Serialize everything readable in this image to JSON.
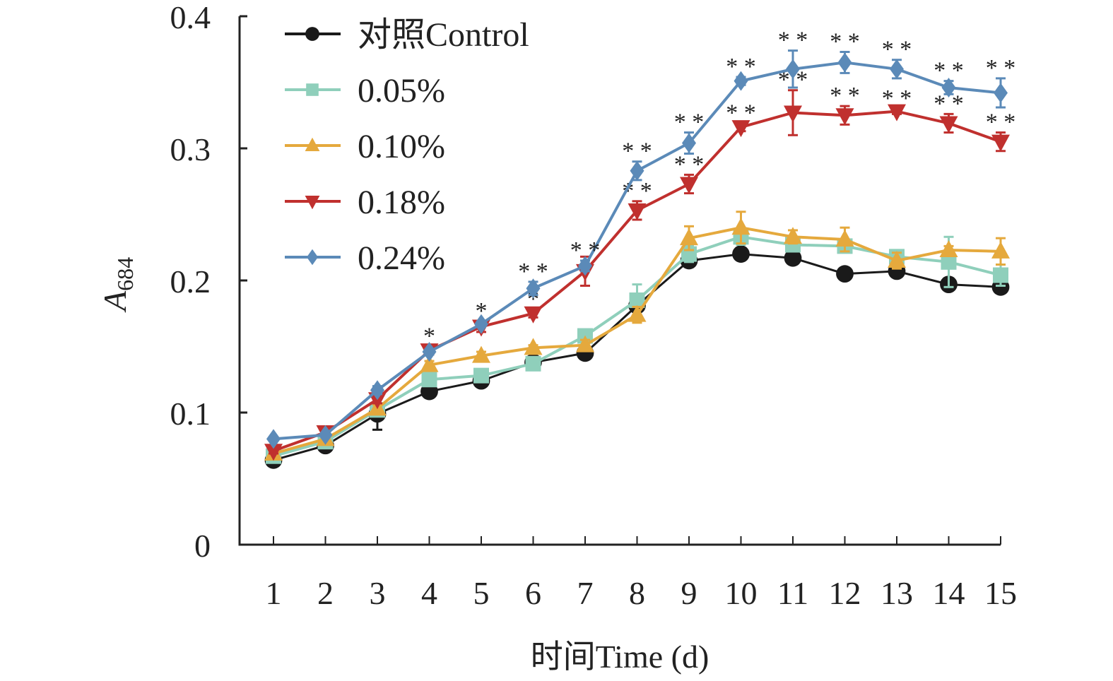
{
  "chart_data": {
    "type": "line",
    "title": "",
    "xlabel": "时间Time (d)",
    "ylabel": "A",
    "ylabel_subscript": "684",
    "ylim": [
      0,
      0.4
    ],
    "yticks": [
      "0",
      "0.1",
      "0.2",
      "0.3",
      "0.4"
    ],
    "ytick_values": [
      0,
      0.1,
      0.2,
      0.3,
      0.4
    ],
    "x": [
      1,
      2,
      3,
      4,
      5,
      6,
      7,
      8,
      9,
      10,
      11,
      12,
      13,
      14,
      15
    ],
    "xticks": [
      "1",
      "2",
      "3",
      "4",
      "5",
      "6",
      "7",
      "8",
      "9",
      "10",
      "11",
      "12",
      "13",
      "14",
      "15"
    ],
    "legend_position": "top-left",
    "grid": false,
    "series": [
      {
        "name": "对照Control",
        "color": "#1a1a1a",
        "marker": "circle",
        "values": [
          0.064,
          0.075,
          0.099,
          0.116,
          0.124,
          0.138,
          0.145,
          0.181,
          0.215,
          0.22,
          0.217,
          0.205,
          0.207,
          0.197,
          0.195
        ],
        "errors": [
          0.002,
          0.002,
          0.012,
          0.002,
          0.004,
          0.002,
          0.003,
          0.004,
          0.004,
          0.003,
          0.002,
          0.003,
          0.002,
          0.004,
          0.004
        ],
        "significance": [
          "",
          "",
          "",
          "",
          "",
          "",
          "",
          "",
          "",
          "",
          "",
          "",
          "",
          "",
          ""
        ]
      },
      {
        "name": "0.05%",
        "color": "#8fcfbb",
        "marker": "square",
        "values": [
          0.067,
          0.078,
          0.102,
          0.125,
          0.128,
          0.137,
          0.158,
          0.185,
          0.22,
          0.233,
          0.227,
          0.226,
          0.218,
          0.214,
          0.204
        ],
        "errors": [
          0.002,
          0.002,
          0.004,
          0.004,
          0.002,
          0.002,
          0.004,
          0.012,
          0.006,
          0.006,
          0.003,
          0.004,
          0.003,
          0.019,
          0.008
        ],
        "significance": [
          "",
          "",
          "",
          "",
          "",
          "",
          "",
          "",
          "",
          "",
          "",
          "",
          "",
          "",
          ""
        ]
      },
      {
        "name": "0.10%",
        "color": "#e5a93d",
        "marker": "triangle-up",
        "values": [
          0.069,
          0.08,
          0.103,
          0.136,
          0.143,
          0.149,
          0.151,
          0.174,
          0.232,
          0.24,
          0.233,
          0.231,
          0.215,
          0.223,
          0.222
        ],
        "errors": [
          0.002,
          0.002,
          0.003,
          0.003,
          0.003,
          0.002,
          0.004,
          0.006,
          0.009,
          0.012,
          0.005,
          0.009,
          0.006,
          0.003,
          0.01
        ],
        "significance": [
          "",
          "",
          "",
          "",
          "",
          "",
          "",
          "",
          "",
          "",
          "",
          "",
          "",
          "",
          ""
        ]
      },
      {
        "name": "0.18%",
        "color": "#c0302e",
        "marker": "triangle-down",
        "values": [
          0.071,
          0.085,
          0.11,
          0.147,
          0.165,
          0.175,
          0.207,
          0.253,
          0.273,
          0.316,
          0.327,
          0.325,
          0.328,
          0.319,
          0.305
        ],
        "errors": [
          0.002,
          0.002,
          0.003,
          0.003,
          0.004,
          0.003,
          0.011,
          0.007,
          0.007,
          0.003,
          0.017,
          0.007,
          0.002,
          0.007,
          0.007
        ],
        "significance": [
          "",
          "",
          "",
          "*",
          "*",
          "*",
          "",
          "**",
          "**",
          "**",
          "**",
          "**",
          "**",
          "**",
          "**"
        ]
      },
      {
        "name": "0.24%",
        "color": "#5b8ab8",
        "marker": "diamond",
        "values": [
          0.08,
          0.083,
          0.117,
          0.146,
          0.167,
          0.194,
          0.211,
          0.283,
          0.304,
          0.351,
          0.36,
          0.365,
          0.36,
          0.346,
          0.342
        ],
        "errors": [
          0.001,
          0.001,
          0.003,
          0.002,
          0.002,
          0.005,
          0.004,
          0.007,
          0.008,
          0.003,
          0.014,
          0.008,
          0.007,
          0.005,
          0.011
        ],
        "significance": [
          "",
          "",
          "",
          "",
          "",
          "**",
          "**",
          "**",
          "**",
          "**",
          "**",
          "**",
          "**",
          "**",
          "**"
        ]
      }
    ]
  }
}
